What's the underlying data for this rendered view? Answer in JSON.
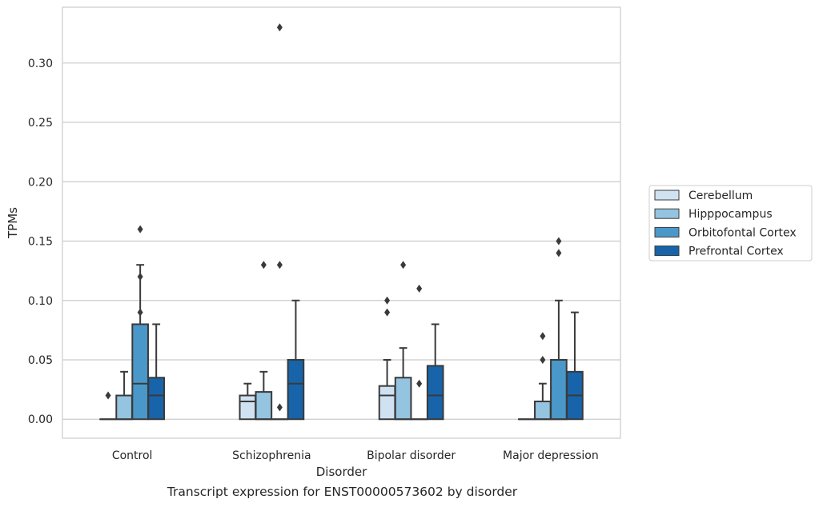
{
  "caption": "Transcript expression for ENST00000573602 by disorder",
  "chart_data": {
    "type": "box",
    "title": "",
    "xlabel": "Disorder",
    "ylabel": "TPMs",
    "ylim": [
      -0.016,
      0.347
    ],
    "yticks": [
      0.0,
      0.05,
      0.1,
      0.15,
      0.2,
      0.25,
      0.3
    ],
    "ytick_labels": [
      "0.00",
      "0.05",
      "0.10",
      "0.15",
      "0.20",
      "0.25",
      "0.30"
    ],
    "grid": true,
    "legend_position": "right",
    "categories": [
      "Control",
      "Schizophrenia",
      "Bipolar disorder",
      "Major depression"
    ],
    "series": [
      {
        "name": "Cerebellum",
        "color": "#d0e1f2",
        "boxes": [
          {
            "q1": 0.0,
            "median": 0.0,
            "q3": 0.0,
            "whisker_low": 0.0,
            "whisker_high": 0.0,
            "outliers": [
              0.02
            ]
          },
          {
            "q1": 0.0,
            "median": 0.015,
            "q3": 0.02,
            "whisker_low": 0.0,
            "whisker_high": 0.03,
            "outliers": []
          },
          {
            "q1": 0.0,
            "median": 0.02,
            "q3": 0.028,
            "whisker_low": 0.0,
            "whisker_high": 0.05,
            "outliers": [
              0.09,
              0.1
            ]
          },
          {
            "q1": 0.0,
            "median": 0.0,
            "q3": 0.0,
            "whisker_low": 0.0,
            "whisker_high": 0.0,
            "outliers": []
          }
        ]
      },
      {
        "name": "Hipppocampus",
        "color": "#94c4df",
        "boxes": [
          {
            "q1": 0.0,
            "median": 0.0,
            "q3": 0.02,
            "whisker_low": 0.0,
            "whisker_high": 0.04,
            "outliers": []
          },
          {
            "q1": 0.0,
            "median": 0.0,
            "q3": 0.023,
            "whisker_low": 0.0,
            "whisker_high": 0.04,
            "outliers": [
              0.13
            ]
          },
          {
            "q1": 0.0,
            "median": 0.0,
            "q3": 0.035,
            "whisker_low": 0.0,
            "whisker_high": 0.06,
            "outliers": [
              0.13
            ]
          },
          {
            "q1": 0.0,
            "median": 0.0,
            "q3": 0.015,
            "whisker_low": 0.0,
            "whisker_high": 0.03,
            "outliers": [
              0.05,
              0.07
            ]
          }
        ]
      },
      {
        "name": "Orbitofontal Cortex",
        "color": "#4a98c9",
        "boxes": [
          {
            "q1": 0.0,
            "median": 0.03,
            "q3": 0.08,
            "whisker_low": 0.0,
            "whisker_high": 0.13,
            "outliers": [
              0.09,
              0.12,
              0.16
            ]
          },
          {
            "q1": 0.0,
            "median": 0.0,
            "q3": 0.0,
            "whisker_low": 0.0,
            "whisker_high": 0.0,
            "outliers": [
              0.01,
              0.13,
              0.33
            ]
          },
          {
            "q1": 0.0,
            "median": 0.0,
            "q3": 0.0,
            "whisker_low": 0.0,
            "whisker_high": 0.0,
            "outliers": [
              0.03,
              0.11
            ]
          },
          {
            "q1": 0.0,
            "median": 0.0,
            "q3": 0.05,
            "whisker_low": 0.0,
            "whisker_high": 0.1,
            "outliers": [
              0.14,
              0.15
            ]
          }
        ]
      },
      {
        "name": "Prefrontal Cortex",
        "color": "#1764ab",
        "boxes": [
          {
            "q1": 0.0,
            "median": 0.02,
            "q3": 0.035,
            "whisker_low": 0.0,
            "whisker_high": 0.08,
            "outliers": []
          },
          {
            "q1": 0.0,
            "median": 0.03,
            "q3": 0.05,
            "whisker_low": 0.0,
            "whisker_high": 0.1,
            "outliers": []
          },
          {
            "q1": 0.0,
            "median": 0.02,
            "q3": 0.045,
            "whisker_low": 0.0,
            "whisker_high": 0.08,
            "outliers": []
          },
          {
            "q1": 0.0,
            "median": 0.02,
            "q3": 0.04,
            "whisker_low": 0.0,
            "whisker_high": 0.09,
            "outliers": []
          }
        ]
      }
    ]
  }
}
